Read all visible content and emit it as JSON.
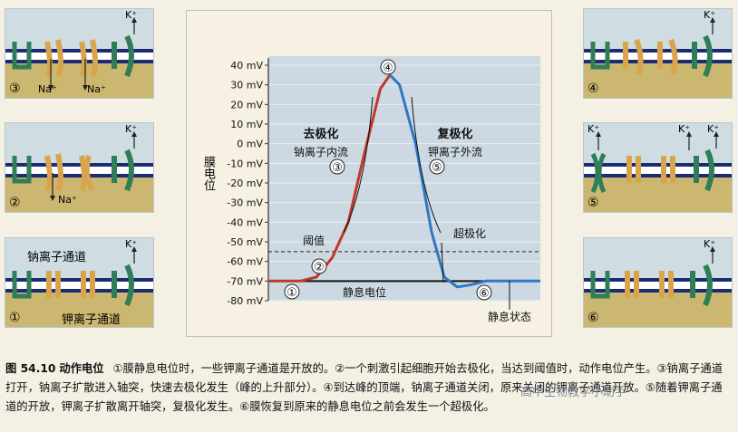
{
  "colors": {
    "sodium_channel": "#d9a54c",
    "potassium_channel": "#2f7e57",
    "membrane": "#1c2b72",
    "intracellular": "#cbb770",
    "extracellular": "#cfdde3",
    "plot_bg": "#cdd9e2",
    "depolarization_line": "#c0392b",
    "repolarization_line": "#2f78c4"
  },
  "panels": [
    {
      "id": "p3",
      "step": "③",
      "k_label": "K⁺",
      "na_labels": [
        "Na⁺",
        "Na⁺"
      ],
      "state": "Na channels open, Na⁺ flows in"
    },
    {
      "id": "p2",
      "step": "②",
      "k_label": "K⁺",
      "na_labels": [
        "Na⁺"
      ],
      "state": "some Na channels open"
    },
    {
      "id": "p1",
      "step": "①",
      "k_label": "K⁺",
      "na_channel_label": "钠离子通道",
      "k_channel_label": "钾离子通道",
      "state": "resting"
    },
    {
      "id": "p4",
      "step": "④",
      "k_label": "K⁺",
      "state": "Na channels inactivated"
    },
    {
      "id": "p5",
      "step": "⑤",
      "k_labels": [
        "K⁺",
        "K⁺",
        "K⁺"
      ],
      "state": "K channels open, K⁺ flows out"
    },
    {
      "id": "p6",
      "step": "⑥",
      "k_label": "K⁺",
      "state": "resting restored"
    }
  ],
  "chart_data": {
    "type": "line",
    "ylabel": "膜电位",
    "y_ticks": [
      "40 mV",
      "30 mV",
      "20 mV",
      "10 mV",
      "0 mV",
      "-10 mV",
      "-20 mV",
      "-30 mV",
      "-40 mV",
      "-50 mV",
      "-60 mV",
      "-70 mV",
      "-80 mV"
    ],
    "ylim": [
      -80,
      40
    ],
    "threshold_mV": -55,
    "resting_mV": -70,
    "grid": true,
    "annotations": {
      "depolarization_title": "去极化",
      "depolarization_sub": "钠离子内流",
      "repolarization_title": "复极化",
      "repolarization_sub": "钾离子外流",
      "threshold": "阈值",
      "hyperpolarization": "超极化",
      "resting_potential": "静息电位",
      "resting_state": "静息状态"
    },
    "markers": [
      "①",
      "②",
      "③",
      "④",
      "⑤",
      "⑥"
    ],
    "curve": [
      {
        "t": 0,
        "mV": -70
      },
      {
        "t": 2,
        "mV": -70
      },
      {
        "t": 3,
        "mV": -68
      },
      {
        "t": 4,
        "mV": -58
      },
      {
        "t": 5,
        "mV": -40
      },
      {
        "t": 6,
        "mV": -5
      },
      {
        "t": 7,
        "mV": 28
      },
      {
        "t": 7.6,
        "mV": 35
      },
      {
        "t": 8.2,
        "mV": 30
      },
      {
        "t": 9.2,
        "mV": 0
      },
      {
        "t": 10.2,
        "mV": -45
      },
      {
        "t": 11,
        "mV": -68
      },
      {
        "t": 11.8,
        "mV": -73
      },
      {
        "t": 12.6,
        "mV": -72
      },
      {
        "t": 13.6,
        "mV": -70
      },
      {
        "t": 17,
        "mV": -70
      }
    ],
    "peak_index": 7
  },
  "caption": {
    "figure_number": "图 54.10",
    "figure_title": "动作电位",
    "text": "①膜静息电位时，一些钾离子通道是开放的。②一个刺激引起细胞开始去极化，当达到阈值时，动作电位产生。③钠离子通道打开，钠离子扩散进入轴突，快速去极化发生（峰的上升部分）。④到达峰的顶端，钠离子通道关闭，原来关闭的钾离子通道开放。⑤随着钾离子通道的开放，钾离子扩散离开轴突，复极化发生。⑥膜恢复到原来的静息电位之前会发生一个超极化。"
  },
  "watermark": "高中生物教学小助手"
}
